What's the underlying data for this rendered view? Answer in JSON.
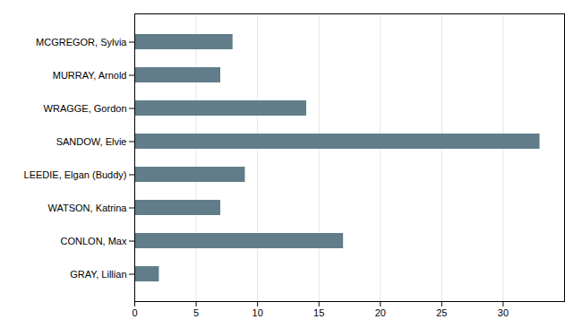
{
  "chart_data": {
    "type": "bar",
    "orientation": "horizontal",
    "categories": [
      "MCGREGOR, Sylvia",
      "MURRAY, Arnold",
      "WRAGGE, Gordon",
      "SANDOW, Elvie",
      "LEEDIE, Elgan (Buddy)",
      "WATSON, Katrina",
      "CONLON, Max",
      "GRAY, Lillian"
    ],
    "values": [
      8,
      7,
      14,
      33,
      9,
      7,
      17,
      2
    ],
    "color": "#617d8a",
    "xlim": [
      0,
      35
    ],
    "xticks": [
      0,
      5,
      10,
      15,
      20,
      25,
      30
    ],
    "grid": true
  }
}
